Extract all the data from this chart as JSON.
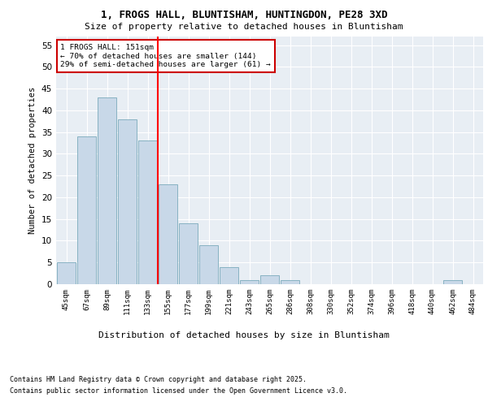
{
  "title1": "1, FROGS HALL, BLUNTISHAM, HUNTINGDON, PE28 3XD",
  "title2": "Size of property relative to detached houses in Bluntisham",
  "xlabel": "Distribution of detached houses by size in Bluntisham",
  "ylabel": "Number of detached properties",
  "categories": [
    "45sqm",
    "67sqm",
    "89sqm",
    "111sqm",
    "133sqm",
    "155sqm",
    "177sqm",
    "199sqm",
    "221sqm",
    "243sqm",
    "265sqm",
    "286sqm",
    "308sqm",
    "330sqm",
    "352sqm",
    "374sqm",
    "396sqm",
    "418sqm",
    "440sqm",
    "462sqm",
    "484sqm"
  ],
  "values": [
    5,
    34,
    43,
    38,
    33,
    23,
    14,
    9,
    4,
    1,
    2,
    1,
    0,
    0,
    0,
    0,
    0,
    0,
    0,
    1,
    0
  ],
  "bar_color": "#c8d8e8",
  "bar_edge_color": "#7aaabb",
  "red_line_index": 5,
  "annotation_text": "1 FROGS HALL: 151sqm\n← 70% of detached houses are smaller (144)\n29% of semi-detached houses are larger (61) →",
  "annotation_box_color": "#ffffff",
  "annotation_box_edge_color": "#cc0000",
  "ylim": [
    0,
    57
  ],
  "yticks": [
    0,
    5,
    10,
    15,
    20,
    25,
    30,
    35,
    40,
    45,
    50,
    55
  ],
  "footer1": "Contains HM Land Registry data © Crown copyright and database right 2025.",
  "footer2": "Contains public sector information licensed under the Open Government Licence v3.0.",
  "bg_color": "#e8eef4",
  "grid_color": "#ffffff",
  "fig_bg_color": "#ffffff"
}
